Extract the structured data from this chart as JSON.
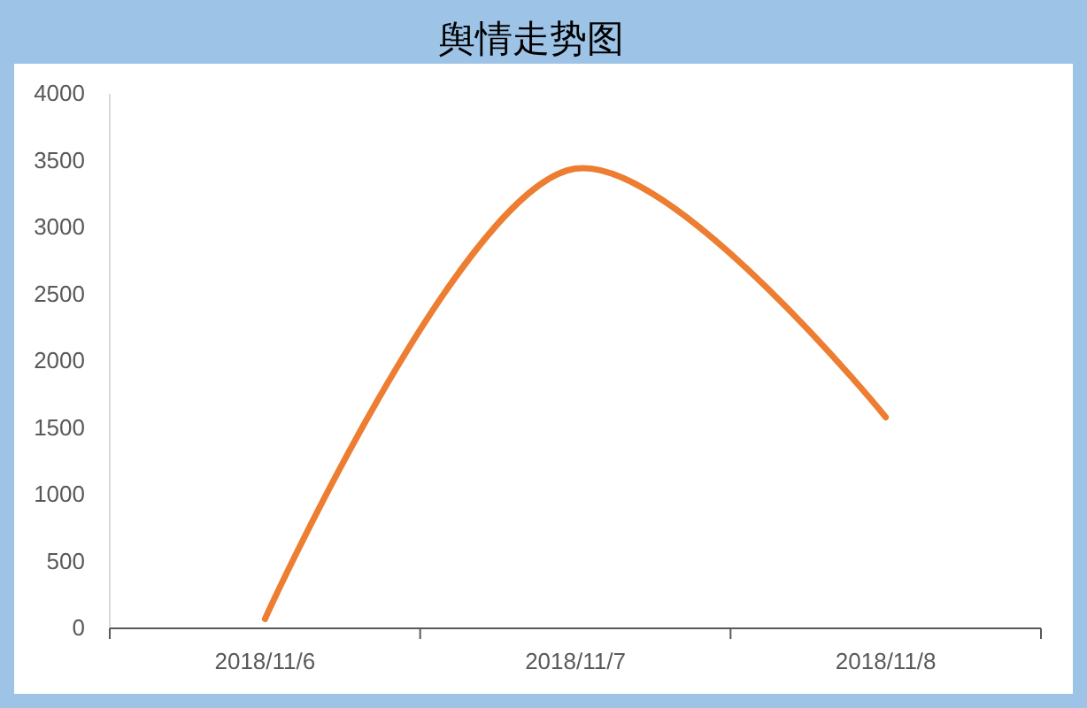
{
  "chart_data": {
    "type": "line",
    "title": "舆情走势图",
    "categories": [
      "2018/11/6",
      "2018/11/7",
      "2018/11/8"
    ],
    "series": [
      {
        "color": "#ed7d31",
        "values": [
          70,
          3440,
          1580
        ]
      }
    ],
    "ylim": [
      0,
      4000
    ],
    "yticks": [
      0,
      500,
      1000,
      1500,
      2000,
      2500,
      3000,
      3500,
      4000
    ],
    "grid": false,
    "marker": "none",
    "line_style": "solid"
  }
}
